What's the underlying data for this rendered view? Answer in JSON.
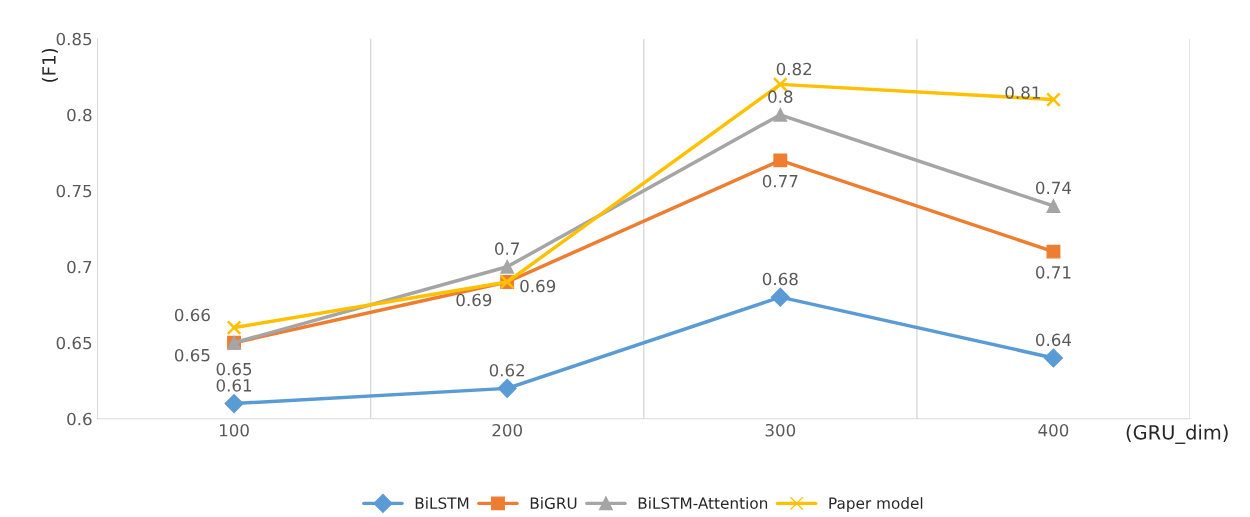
{
  "chart_data": {
    "type": "line",
    "xlabel": "(GRU_dim)",
    "ylabel": "(F1)",
    "categories": [
      "100",
      "200",
      "300",
      "400"
    ],
    "series": [
      {
        "name": "BiLSTM",
        "color": "#5b9bd5",
        "marker": "diamond",
        "values": [
          0.61,
          0.62,
          0.68,
          0.64
        ]
      },
      {
        "name": "BiGRU",
        "color": "#ed7d31",
        "marker": "square",
        "values": [
          0.65,
          0.69,
          0.77,
          0.71
        ]
      },
      {
        "name": "BiLSTM-Attention",
        "color": "#a5a5a5",
        "marker": "triangle",
        "values": [
          0.65,
          0.7,
          0.8,
          0.74
        ]
      },
      {
        "name": "Paper model",
        "color": "#ffc000",
        "marker": "cross",
        "values": [
          0.66,
          0.69,
          0.82,
          0.81
        ]
      }
    ],
    "ylim": [
      0.6,
      0.85
    ],
    "yticks": [
      0.6,
      0.65,
      0.7,
      0.75,
      0.8,
      0.85
    ],
    "grid": "x",
    "legend": "bottom",
    "data_labels": true
  }
}
